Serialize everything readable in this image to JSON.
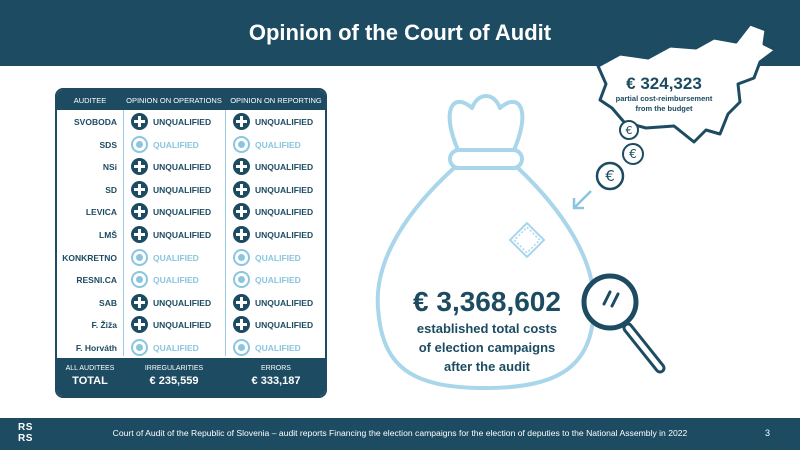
{
  "header": {
    "title": "Opinion of the Court of Audit"
  },
  "table": {
    "columns": [
      "AUDITEE",
      "OPINION ON OPERATIONS",
      "OPINION ON REPORTING"
    ],
    "rows": [
      {
        "name": "SVOBODA",
        "ops": "UNQUALIFIED",
        "rep": "UNQUALIFIED"
      },
      {
        "name": "SDS",
        "ops": "QUALIFIED",
        "rep": "QUALIFIED"
      },
      {
        "name": "NSi",
        "ops": "UNQUALIFIED",
        "rep": "UNQUALIFIED"
      },
      {
        "name": "SD",
        "ops": "UNQUALIFIED",
        "rep": "UNQUALIFIED"
      },
      {
        "name": "LEVICA",
        "ops": "UNQUALIFIED",
        "rep": "UNQUALIFIED"
      },
      {
        "name": "LMŠ",
        "ops": "UNQUALIFIED",
        "rep": "UNQUALIFIED"
      },
      {
        "name": "KONKRETNO",
        "ops": "QUALIFIED",
        "rep": "QUALIFIED"
      },
      {
        "name": "RESNI.CA",
        "ops": "QUALIFIED",
        "rep": "QUALIFIED"
      },
      {
        "name": "SAB",
        "ops": "UNQUALIFIED",
        "rep": "UNQUALIFIED"
      },
      {
        "name": "F. Žiža",
        "ops": "UNQUALIFIED",
        "rep": "UNQUALIFIED"
      },
      {
        "name": "F. Horváth",
        "ops": "QUALIFIED",
        "rep": "QUALIFIED"
      }
    ],
    "footer": {
      "label_small": "ALL AUDITEES",
      "label_big": "TOTAL",
      "irregularities_label": "IRREGULARITIES",
      "irregularities_value": "€ 235,559",
      "errors_label": "ERRORS",
      "errors_value": "€ 333,187"
    }
  },
  "total": {
    "amount": "€ 3,368,602",
    "line1": "established total costs",
    "line2": "of election campaigns",
    "line3": "after the audit"
  },
  "reimbursement": {
    "amount": "€ 324,323",
    "line1": "partial cost-reimbursement",
    "line2": "from the budget"
  },
  "footer": {
    "logo_line1": "RS",
    "logo_line2": "RS",
    "text": "Court of Audit of the Republic of Slovenia – audit reports Financing the election campaigns for the election of deputies to the National Assembly in 2022",
    "page": "3"
  },
  "colors": {
    "primary": "#1c4b62",
    "light": "#8ac6df"
  },
  "icons": [
    "plus-circle-icon",
    "qualified-circle-icon",
    "money-bag-icon",
    "magnifier-icon",
    "euro-coin-icon",
    "slovenia-map-icon",
    "arrow-icon"
  ]
}
